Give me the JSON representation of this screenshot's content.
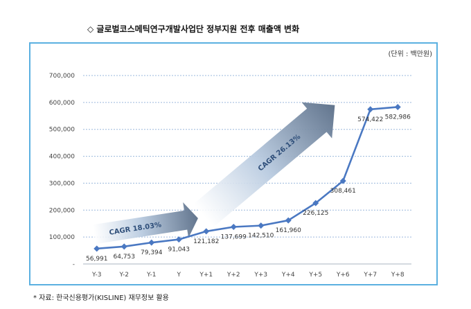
{
  "page": {
    "title": "◇ 글로벌코스메틱연구개발사업단 정부지원 전후 매출액 변화",
    "unit": "(단위 : 백만원)",
    "source": "* 자료: 한국신용평가(KISLINE) 재무정보 활용"
  },
  "chart_data": {
    "type": "line",
    "title": "◇ 글로벌코스메틱연구개발사업단 정부지원 전후 매출액 변화",
    "unit_label": "(단위 : 백만원)",
    "categories": [
      "Y-3",
      "Y-2",
      "Y-1",
      "Y",
      "Y+1",
      "Y+2",
      "Y+3",
      "Y+4",
      "Y+5",
      "Y+6",
      "Y+7",
      "Y+8"
    ],
    "values": [
      56991,
      64753,
      79394,
      91043,
      121182,
      137699,
      142510,
      161960,
      226125,
      308461,
      574422,
      582986
    ],
    "value_labels": [
      "56,991",
      "64,753",
      "79,394",
      "91,043",
      "121,182",
      "137,699",
      "142,510",
      "161,960",
      "226,125",
      "308,461",
      "574,422",
      "582,986"
    ],
    "y_ticks": [
      0,
      100000,
      200000,
      300000,
      400000,
      500000,
      600000,
      700000
    ],
    "y_tick_labels": [
      "-",
      "100,000",
      "200,000",
      "300,000",
      "400,000",
      "500,000",
      "600,000",
      "700,000"
    ],
    "ylim": [
      0,
      700000
    ],
    "grid": true,
    "line_color": "#4a78c2",
    "annotations": [
      {
        "text": "CAGR 18.03%",
        "from_category": "Y-3",
        "to_category": "Y+1",
        "from_value": 110000,
        "to_value": 170000
      },
      {
        "text": "CAGR 26.13%",
        "from_category": "Y+1",
        "to_category": "Y+6",
        "from_value": 180000,
        "to_value": 590000
      }
    ]
  }
}
